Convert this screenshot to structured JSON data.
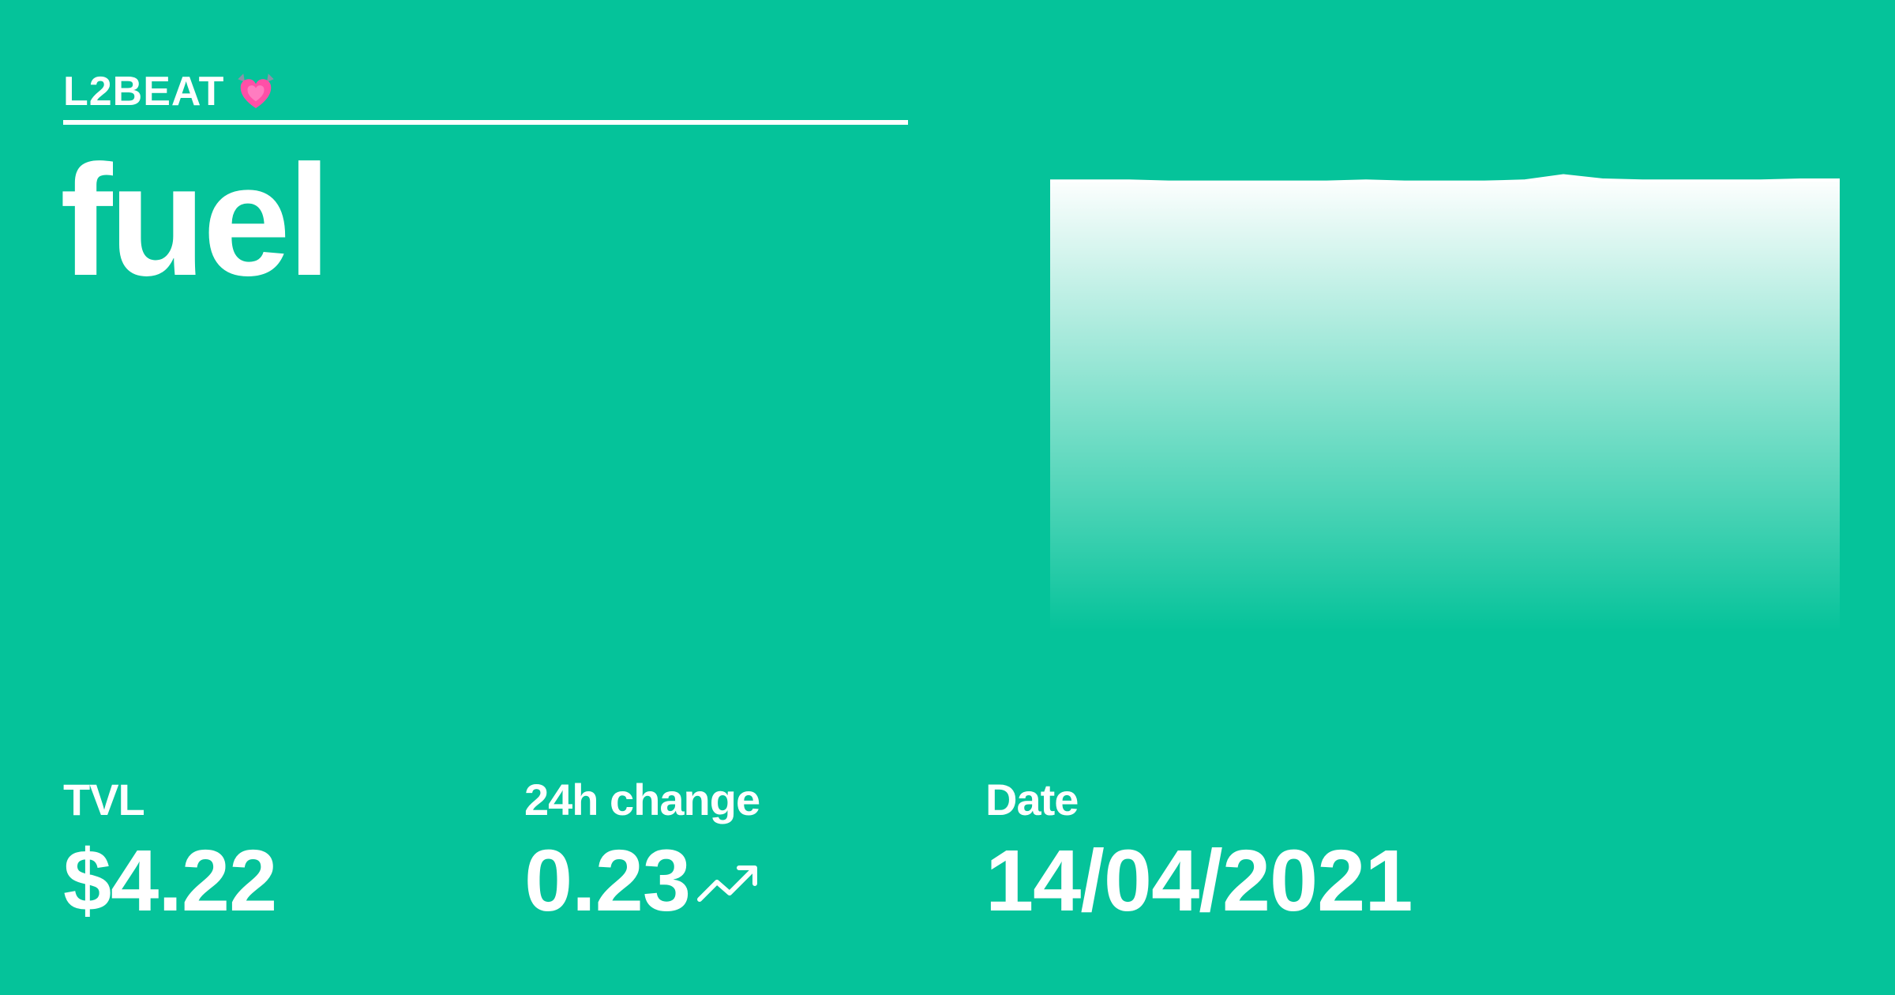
{
  "brand": {
    "name": "L2BEAT",
    "icon": "heart-icon",
    "accent_color": "#ff4fa7"
  },
  "project": {
    "name": "fuel"
  },
  "colors": {
    "background": "#05c39a",
    "foreground": "#ffffff"
  },
  "stats": {
    "tvl": {
      "label": "TVL",
      "value": "$4.22"
    },
    "change": {
      "label": "24h change",
      "value": "0.23",
      "icon": "trend-up-icon"
    },
    "date": {
      "label": "Date",
      "value": "14/04/2021"
    }
  },
  "chart_data": {
    "type": "area",
    "title": "",
    "xlabel": "",
    "ylabel": "",
    "grid": false,
    "ylim": [
      0,
      4.5
    ],
    "values": [
      4.21,
      4.21,
      4.21,
      4.2,
      4.2,
      4.2,
      4.2,
      4.2,
      4.21,
      4.2,
      4.2,
      4.2,
      4.21,
      4.26,
      4.22,
      4.21,
      4.21,
      4.21,
      4.21,
      4.22,
      4.22
    ]
  }
}
